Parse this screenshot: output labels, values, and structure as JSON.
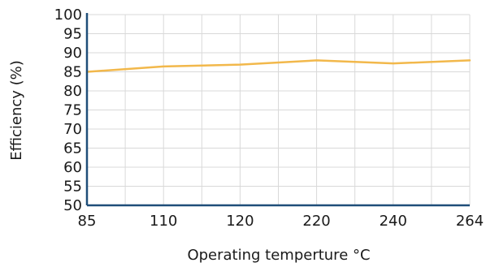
{
  "chart_data": {
    "type": "line",
    "title": "",
    "xlabel": "Operating temperture °C",
    "ylabel": "Efficiency (%)",
    "categories": [
      "85",
      "110",
      "120",
      "220",
      "240",
      "264"
    ],
    "ylim": [
      50,
      100
    ],
    "yticks": [
      "50",
      "55",
      "60",
      "65",
      "70",
      "75",
      "80",
      "85",
      "90",
      "95",
      "100"
    ],
    "grid": true,
    "series": [
      {
        "values": [
          85.0,
          86.4,
          86.9,
          88.0,
          87.2,
          88.0
        ],
        "color": "#f2b84b"
      }
    ],
    "colors": {
      "axis": "#1f4e79",
      "grid": "#d9d9d9",
      "line": "#f2b84b"
    }
  }
}
